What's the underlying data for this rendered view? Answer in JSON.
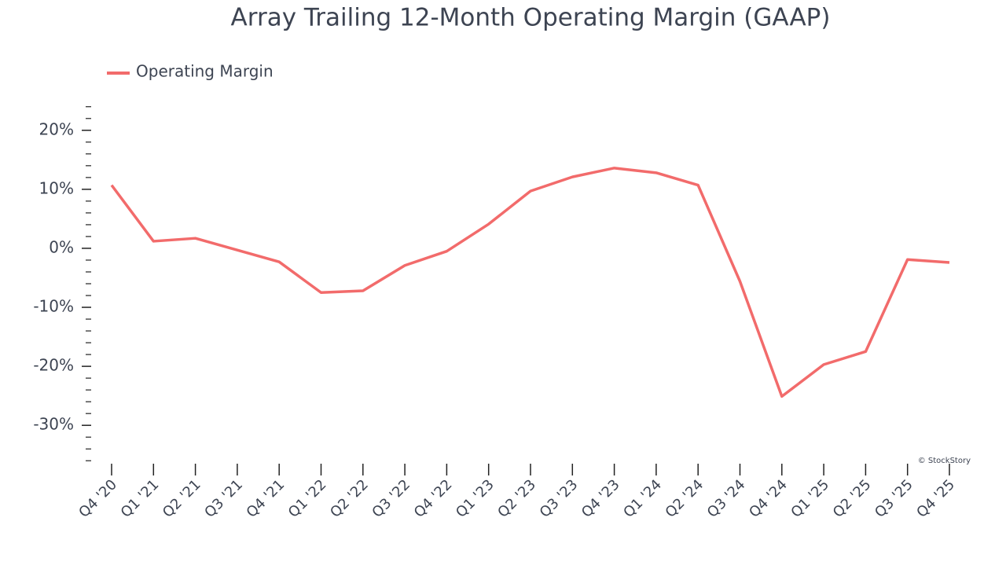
{
  "chart_data": {
    "type": "line",
    "title": "Array Trailing 12-Month Operating Margin (GAAP)",
    "categories": [
      "Q4 '20",
      "Q1 '21",
      "Q2 '21",
      "Q3 '21",
      "Q4 '21",
      "Q1 '22",
      "Q2 '22",
      "Q3 '22",
      "Q4 '22",
      "Q1 '23",
      "Q2 '23",
      "Q3 '23",
      "Q4 '23",
      "Q1 '24",
      "Q2 '24",
      "Q3 '24",
      "Q4 '24",
      "Q1 '25",
      "Q2 '25",
      "Q3 '25",
      "Q4 '25"
    ],
    "series": [
      {
        "name": "Operating Margin",
        "color": "#f26b6b",
        "values": [
          10.7,
          1.2,
          1.7,
          -0.3,
          -2.3,
          -7.5,
          -7.2,
          -2.9,
          -0.5,
          4.1,
          9.7,
          12.1,
          13.6,
          12.8,
          10.7,
          -5.6,
          -25.1,
          -19.7,
          -17.5,
          -1.9,
          -2.4
        ]
      }
    ],
    "ylim": [
      -36.5,
      24.5
    ],
    "yticks": [
      {
        "value": -30,
        "label": "-30%"
      },
      {
        "value": -20,
        "label": "-20%"
      },
      {
        "value": -10,
        "label": "-10%"
      },
      {
        "value": 0,
        "label": "0%"
      },
      {
        "value": 10,
        "label": "10%"
      },
      {
        "value": 20,
        "label": "20%"
      }
    ],
    "yminorticks": [
      -36,
      -34,
      -32,
      -28,
      -26,
      -24,
      -22,
      -18,
      -16,
      -14,
      -12,
      -8,
      -6,
      -4,
      -2,
      2,
      4,
      6,
      8,
      12,
      14,
      16,
      18,
      22,
      24
    ],
    "legend": "top-left",
    "watermark": "© StockStory"
  }
}
